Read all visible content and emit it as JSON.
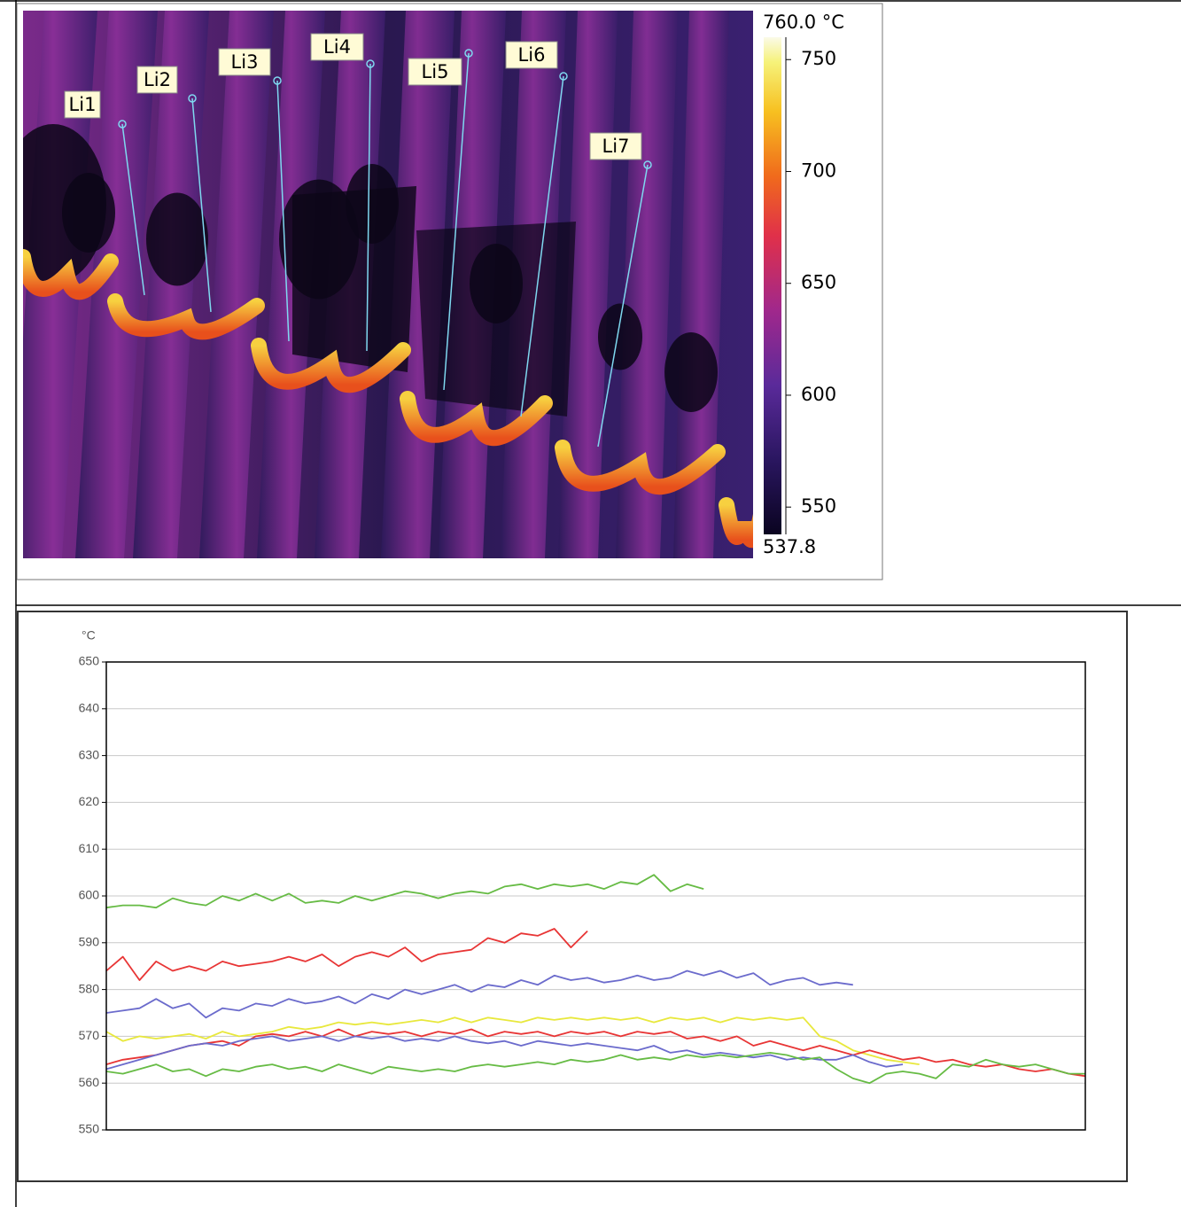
{
  "thermal_image": {
    "lines": [
      {
        "label": "Li1"
      },
      {
        "label": "Li2"
      },
      {
        "label": "Li3"
      },
      {
        "label": "Li4"
      },
      {
        "label": "Li5"
      },
      {
        "label": "Li6"
      },
      {
        "label": "Li7"
      }
    ],
    "colorbar": {
      "range": [
        {
          "value": 537.8,
          "label": "537.8"
        },
        {
          "value": 760,
          "label": "760.0 °C"
        }
      ],
      "ticks": [
        550,
        600,
        650,
        700,
        750
      ]
    }
  },
  "chart_data": {
    "type": "line",
    "ylabel": "°C",
    "ylim": [
      550,
      650
    ],
    "yticks": [
      550,
      560,
      570,
      580,
      590,
      600,
      610,
      620,
      630,
      640,
      650
    ],
    "grid": true,
    "categories": [
      null,
      null,
      null,
      null,
      null,
      null,
      null,
      null,
      null,
      null,
      null,
      null,
      null,
      null,
      null,
      null,
      null,
      null,
      null,
      null,
      null,
      null,
      null,
      null,
      null,
      null,
      null,
      null,
      null,
      null,
      null,
      null,
      null,
      null,
      null,
      null,
      null,
      null,
      null,
      null,
      null,
      null,
      null,
      null,
      null,
      null,
      null,
      null,
      null,
      null,
      null,
      null,
      null,
      null,
      null,
      null,
      null,
      null,
      null,
      null
    ],
    "series": [
      {
        "color": "#66bb44",
        "values": [
          597.5,
          598,
          598,
          597.5,
          599.5,
          598.5,
          598,
          600,
          599,
          600.5,
          599,
          600.5,
          598.5,
          599,
          598.5,
          600,
          599,
          600,
          601,
          600.5,
          599.5,
          600.5,
          601,
          600.5,
          602,
          602.5,
          601.5,
          602.5,
          602,
          602.5,
          601.5,
          603,
          602.5,
          604.5,
          601,
          602.5,
          601.5,
          null,
          null,
          null,
          null,
          null,
          null,
          null,
          null,
          null,
          null,
          null,
          null,
          null,
          null,
          null,
          null,
          null,
          null,
          null,
          null,
          null,
          null,
          null
        ]
      },
      {
        "color": "#e83535",
        "values": [
          584,
          587,
          582,
          586,
          584,
          585,
          584,
          586,
          585,
          585.5,
          586,
          587,
          586,
          587.5,
          585,
          587,
          588,
          587,
          589,
          586,
          587.5,
          588,
          588.5,
          591,
          590,
          592,
          591.5,
          593,
          589,
          592.5,
          null,
          null,
          null,
          null,
          null,
          null,
          null,
          null,
          null,
          null,
          null,
          null,
          null,
          null,
          null,
          null,
          null,
          null,
          null,
          null,
          null,
          null,
          null,
          null,
          null,
          null,
          null,
          null,
          null,
          null
        ]
      },
      {
        "color": "#6b6bcc",
        "values": [
          575,
          575.5,
          576,
          578,
          576,
          577,
          574,
          576,
          575.5,
          577,
          576.5,
          578,
          577,
          577.5,
          578.5,
          577,
          579,
          578,
          580,
          579,
          580,
          581,
          579.5,
          581,
          580.5,
          582,
          581,
          583,
          582,
          582.5,
          581.5,
          582,
          583,
          582,
          582.5,
          584,
          583,
          584,
          582.5,
          583.5,
          581,
          582,
          582.5,
          581,
          581.5,
          581,
          null,
          null,
          null,
          null,
          null,
          null,
          null,
          null,
          null,
          null,
          null,
          null,
          null,
          null
        ]
      },
      {
        "color": "#e8e83c",
        "values": [
          571,
          569,
          570,
          569.5,
          570,
          570.5,
          569.5,
          571,
          570,
          570.5,
          571,
          572,
          571.5,
          572,
          573,
          572.5,
          573,
          572.5,
          573,
          573.5,
          573,
          574,
          573,
          574,
          573.5,
          573,
          574,
          573.5,
          574,
          573.5,
          574,
          573.5,
          574,
          573,
          574,
          573.5,
          574,
          573,
          574,
          573.5,
          574,
          573.5,
          574,
          570,
          569,
          567,
          566,
          565,
          564.5,
          564,
          null,
          null,
          null,
          null,
          null,
          null,
          null,
          null,
          null,
          null
        ]
      },
      {
        "color": "#e83535",
        "values": [
          564,
          565,
          565.5,
          566,
          567,
          568,
          568.5,
          569,
          568,
          570,
          570.5,
          570,
          571,
          570,
          571.5,
          570,
          571,
          570.5,
          571,
          570,
          571,
          570.5,
          571.5,
          570,
          571,
          570.5,
          571,
          570,
          571,
          570.5,
          571,
          570,
          571,
          570.5,
          571,
          569.5,
          570,
          569,
          570,
          568,
          569,
          568,
          567,
          568,
          567,
          566,
          567,
          566,
          565,
          565.5,
          564.5,
          565,
          564,
          563.5,
          564,
          563,
          562.5,
          563,
          562,
          561.5
        ]
      },
      {
        "color": "#6b6bcc",
        "values": [
          563,
          564,
          565,
          566,
          567,
          568,
          568.5,
          568,
          569,
          569.5,
          570,
          569,
          569.5,
          570,
          569,
          570,
          569.5,
          570,
          569,
          569.5,
          569,
          570,
          569,
          568.5,
          569,
          568,
          569,
          568.5,
          568,
          568.5,
          568,
          567.5,
          567,
          568,
          566.5,
          567,
          566,
          566.5,
          566,
          565.5,
          566,
          565,
          565.5,
          565,
          565,
          566,
          564.5,
          563.5,
          564,
          null,
          null,
          null,
          null,
          null,
          null,
          null,
          null,
          null,
          null,
          null
        ]
      },
      {
        "color": "#66bb44",
        "values": [
          562.5,
          562,
          563,
          564,
          562.5,
          563,
          561.5,
          563,
          562.5,
          563.5,
          564,
          563,
          563.5,
          562.5,
          564,
          563,
          562,
          563.5,
          563,
          562.5,
          563,
          562.5,
          563.5,
          564,
          563.5,
          564,
          564.5,
          564,
          565,
          564.5,
          565,
          566,
          565,
          565.5,
          565,
          566,
          565.5,
          566,
          565.5,
          566,
          566.5,
          566,
          565,
          565.5,
          563,
          561,
          560,
          562,
          562.5,
          562,
          561,
          564,
          563.5,
          565,
          564,
          563.5,
          564,
          563,
          562,
          562
        ]
      }
    ]
  }
}
